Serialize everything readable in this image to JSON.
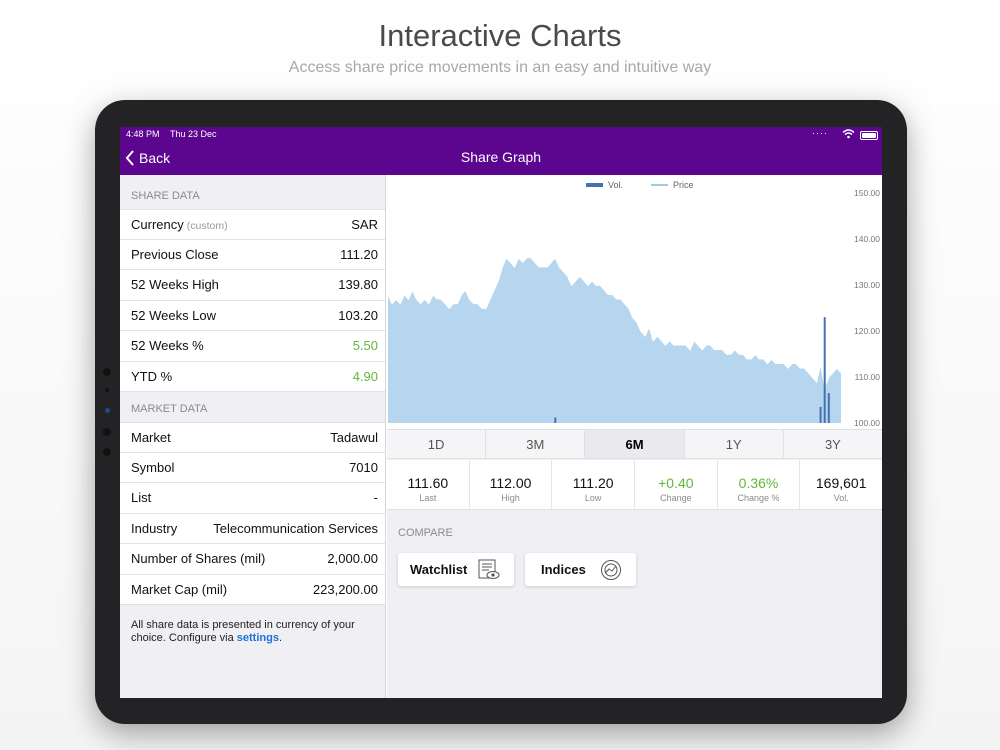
{
  "promo": {
    "title": "Interactive Charts",
    "subtitle": "Access share price movements in an easy and intuitive way"
  },
  "status_bar": {
    "time": "4:48 PM",
    "date": "Thu 23 Dec",
    "signal_icon": "dots-icon",
    "wifi_icon": "wifi-icon",
    "battery_icon": "battery-icon"
  },
  "nav": {
    "back_label": "Back",
    "title": "Share Graph"
  },
  "share_data": {
    "header": "SHARE DATA",
    "rows": [
      {
        "label": "Currency",
        "note": "(custom)",
        "value": "SAR"
      },
      {
        "label": "Previous Close",
        "value": "111.20"
      },
      {
        "label": "52 Weeks High",
        "value": "139.80"
      },
      {
        "label": "52 Weeks Low",
        "value": "103.20"
      },
      {
        "label": "52 Weeks %",
        "value": "5.50"
      },
      {
        "label": "YTD %",
        "value": "4.90"
      }
    ]
  },
  "market_data": {
    "header": "MARKET DATA",
    "rows": [
      {
        "label": "Market",
        "value": "Tadawul"
      },
      {
        "label": "Symbol",
        "value": "7010"
      },
      {
        "label": "List",
        "value": "-"
      },
      {
        "label": "Industry",
        "value": "Telecommunication Services"
      },
      {
        "label": "Number of Shares (mil)",
        "value": "2,000.00"
      },
      {
        "label": "Market Cap (mil)",
        "value": "223,200.00"
      }
    ]
  },
  "footnote": {
    "text": "All share data is presented in currency of your choice. Configure via ",
    "link": "settings",
    "end": "."
  },
  "ranges": [
    "1D",
    "3M",
    "6M",
    "1Y",
    "3Y"
  ],
  "active_range": "6M",
  "stats": [
    {
      "value": "111.60",
      "label": "Last"
    },
    {
      "value": "112.00",
      "label": "High"
    },
    {
      "value": "111.20",
      "label": "Low"
    },
    {
      "value": "+0.40",
      "label": "Change",
      "green": true
    },
    {
      "value": "0.36%",
      "label": "Change %",
      "green": true
    },
    {
      "value": "169,601",
      "label": "Vol."
    }
  ],
  "compare": {
    "label": "COMPARE",
    "watchlist": "Watchlist",
    "indices": "Indices",
    "watchlist_icon": "watchlist-eye-icon",
    "indices_icon": "chart-disc-icon"
  },
  "colors": {
    "brand": "#5c058f",
    "positive": "#62b737",
    "link": "#1b73d6",
    "area_fill": "#b5d6ee",
    "price_line": "#ffffff",
    "volume": "#4472b0"
  },
  "chart_data": {
    "type": "area",
    "legend": [
      "Vol.",
      "Price"
    ],
    "y_ticks": [
      "150.00",
      "140.00",
      "130.00",
      "120.00",
      "110.00",
      "100.00"
    ],
    "ylim": [
      100,
      150
    ],
    "y_axis_side": "right",
    "grid": false,
    "legend_placement": "top-center",
    "price": [
      128,
      126,
      127,
      126,
      128,
      127,
      129,
      127,
      126,
      127,
      126,
      128,
      127,
      127,
      126,
      125,
      126,
      126,
      128,
      129,
      127,
      126,
      126,
      125,
      125,
      127,
      129,
      131,
      134,
      136,
      135,
      134,
      136,
      135,
      136,
      136,
      135,
      134,
      134,
      134,
      135,
      136,
      134,
      133,
      132,
      130,
      131,
      132,
      131,
      130,
      131,
      130,
      130,
      129,
      128,
      128,
      127,
      127,
      126,
      125,
      123,
      122,
      120,
      119,
      121,
      118,
      119,
      118,
      117,
      118,
      117,
      117,
      117,
      117,
      116,
      118,
      117,
      116,
      117,
      117,
      116,
      116,
      116,
      115,
      115,
      116,
      115,
      115,
      114,
      114,
      115,
      114,
      114,
      113,
      114,
      113,
      113,
      113,
      112,
      113,
      113,
      112,
      112,
      111,
      110,
      109,
      113,
      108,
      110,
      111,
      112,
      111
    ],
    "volume_spikes": [
      {
        "index": 107,
        "value": 123
      },
      {
        "index": 108,
        "value": 106.5
      },
      {
        "index": 106,
        "value": 103.5
      },
      {
        "index": 41,
        "value": 101.2
      }
    ]
  }
}
